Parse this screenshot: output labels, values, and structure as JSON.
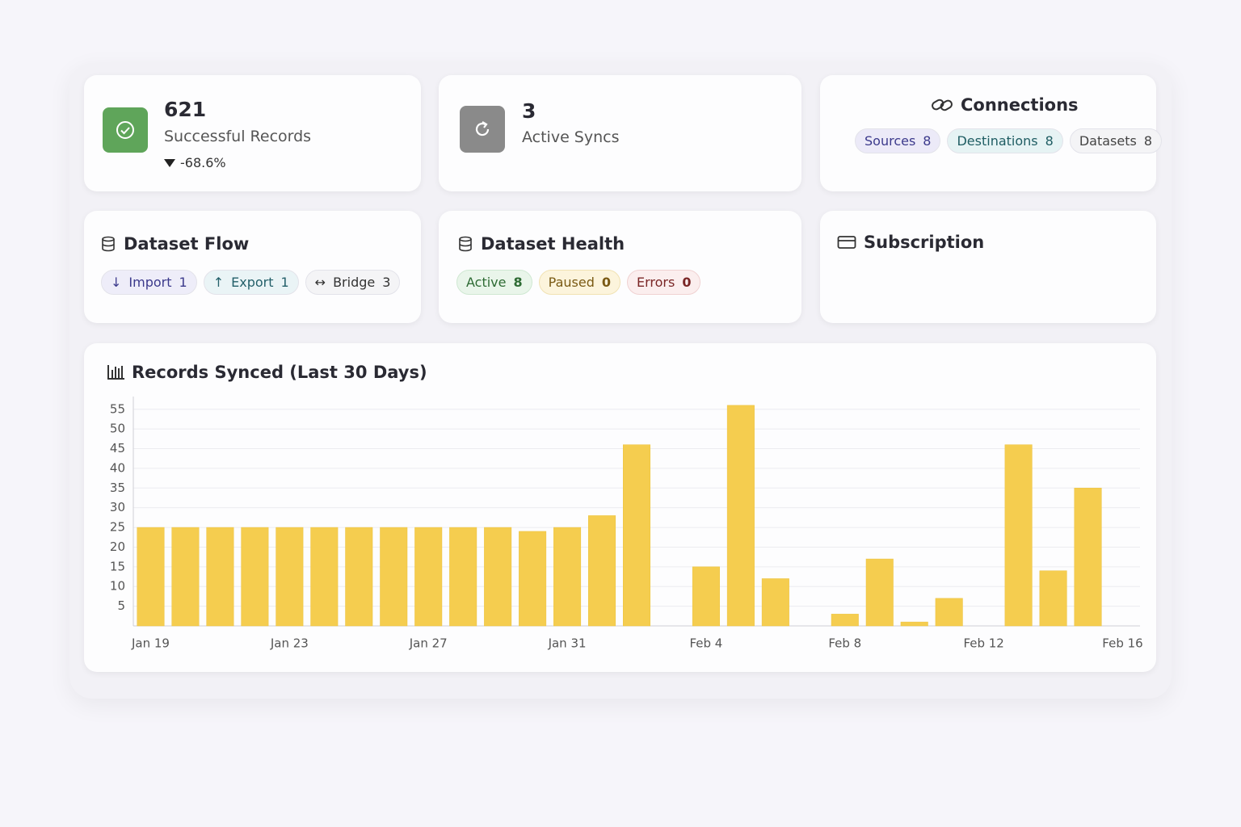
{
  "stats": [
    {
      "value": 621,
      "label": "Successful Records",
      "change": "-68.6%"
    },
    {
      "value": 3,
      "label": "Active Syncs"
    }
  ],
  "connections": {
    "title": "Connections",
    "badges": [
      {
        "label": "Sources",
        "count": 8
      },
      {
        "label": "Destinations",
        "count": 8
      },
      {
        "label": "Datasets",
        "count": 8
      }
    ]
  },
  "dataset_flow": {
    "title": "Dataset Flow",
    "badges": [
      {
        "label": "Import",
        "count": 1
      },
      {
        "label": "Export",
        "count": 1
      },
      {
        "label": "Bridge",
        "count": 3
      }
    ]
  },
  "dataset_health": {
    "title": "Dataset Health",
    "badges": [
      {
        "label": "Active",
        "count": 8
      },
      {
        "label": "Paused",
        "count": 0
      },
      {
        "label": "Errors",
        "count": 0
      }
    ]
  },
  "subscription": {
    "title": "Subscription"
  },
  "chart_data": {
    "type": "bar",
    "title": "Records Synced (Last 30 Days)",
    "categories": [
      "Jan 19",
      null,
      null,
      null,
      "Jan 23",
      null,
      null,
      null,
      "Jan 27",
      null,
      null,
      null,
      "Jan 31",
      null,
      null,
      null,
      "Feb 4",
      null,
      null,
      null,
      "Feb 8",
      null,
      null,
      null,
      "Feb 12",
      null,
      null,
      null,
      "Feb 16"
    ],
    "values": [
      25,
      25,
      25,
      25,
      25,
      25,
      25,
      25,
      25,
      25,
      25,
      24,
      25,
      28,
      46,
      0,
      15,
      56,
      12,
      0,
      3,
      17,
      1,
      7,
      0,
      46,
      14,
      35,
      0
    ],
    "color": "#f5cd4f",
    "ylim": [
      0,
      57
    ],
    "yticks": [
      5,
      10,
      15,
      20,
      25,
      30,
      35,
      40,
      45,
      50,
      55
    ],
    "grid": true
  }
}
